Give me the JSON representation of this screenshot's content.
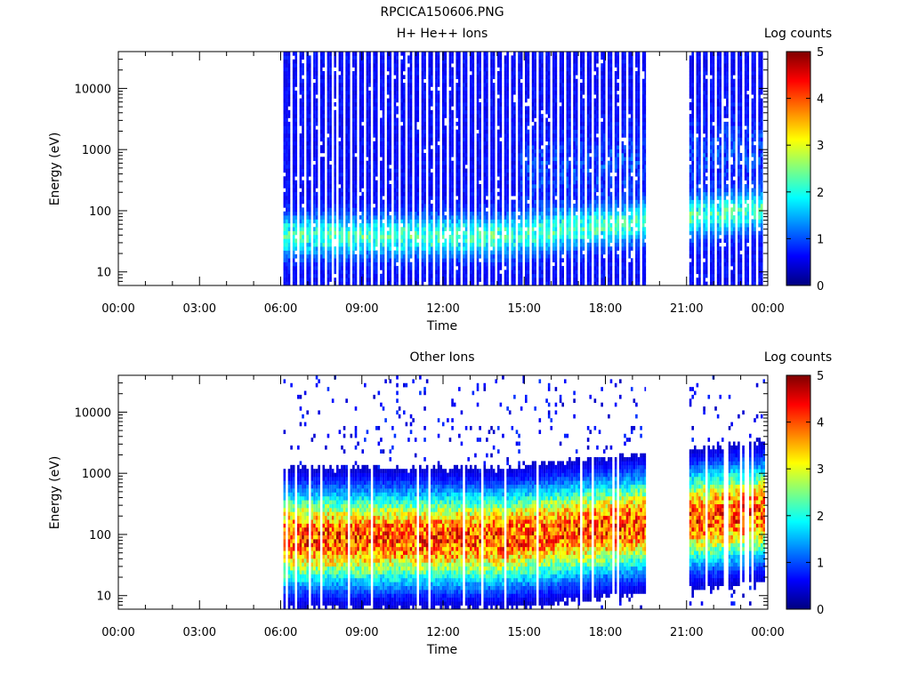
{
  "figure_title": "RPCICA150606.PNG",
  "chart_data": [
    {
      "type": "heatmap",
      "title": "H+ He++ Ions",
      "xlabel": "Time",
      "ylabel": "Energy (eV)",
      "x_ticks": [
        "00:00",
        "03:00",
        "06:00",
        "09:00",
        "12:00",
        "15:00",
        "18:00",
        "21:00",
        "00:00"
      ],
      "x_range_hours": [
        0,
        24
      ],
      "y_scale": "log",
      "y_range": [
        6,
        40000
      ],
      "y_ticks": [
        "10",
        "100",
        "1000",
        "10000"
      ],
      "y_tick_values": [
        10,
        100,
        1000,
        10000
      ],
      "colorbar": {
        "label": "Log counts",
        "range": [
          0,
          5
        ],
        "ticks": [
          "0",
          "1",
          "2",
          "3",
          "4",
          "5"
        ],
        "colormap": "jet"
      },
      "data_intervals_hours": [
        [
          6.1,
          19.5
        ],
        [
          21.1,
          23.9
        ]
      ],
      "dominant_band_eV": [
        25,
        60
      ],
      "band_peak_log_counts": 2.0
    },
    {
      "type": "heatmap",
      "title": "Other Ions",
      "xlabel": "Time",
      "ylabel": "Energy (eV)",
      "x_ticks": [
        "00:00",
        "03:00",
        "06:00",
        "09:00",
        "12:00",
        "15:00",
        "18:00",
        "21:00",
        "00:00"
      ],
      "x_range_hours": [
        0,
        24
      ],
      "y_scale": "log",
      "y_range": [
        6,
        40000
      ],
      "y_ticks": [
        "10",
        "100",
        "1000",
        "10000"
      ],
      "y_tick_values": [
        10,
        100,
        1000,
        10000
      ],
      "colorbar": {
        "label": "Log counts",
        "range": [
          0,
          5
        ],
        "ticks": [
          "0",
          "1",
          "2",
          "3",
          "4",
          "5"
        ],
        "colormap": "jet"
      },
      "data_intervals_hours": [
        [
          6.1,
          19.5
        ],
        [
          21.1,
          23.9
        ]
      ],
      "dominant_band_eV": [
        25,
        300
      ],
      "band_peak_log_counts": 4.5
    }
  ]
}
